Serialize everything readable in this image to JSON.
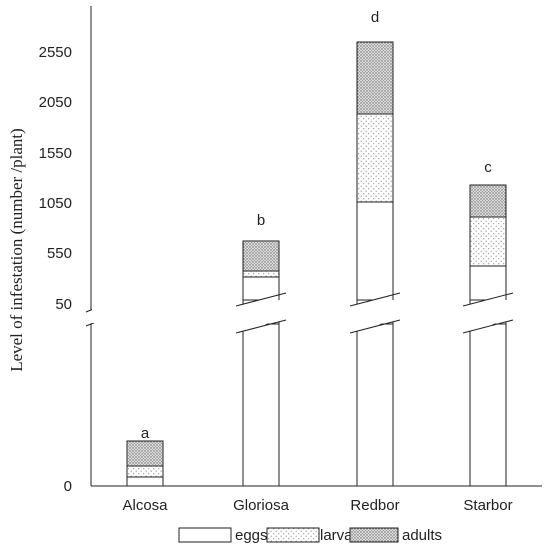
{
  "chart_data": {
    "type": "bar",
    "stacked": true,
    "broken_axis": true,
    "categories": [
      "Alcosa",
      "Gloriosa",
      "Redbor",
      "Starbor"
    ],
    "significance": [
      "a",
      "b",
      "d",
      "c"
    ],
    "ylabel": "Level of infestation (number /plant)",
    "yticks_upper": [
      "2550",
      "2050",
      "1550",
      "1050",
      "550",
      "50"
    ],
    "yticks_lower": [
      "0"
    ],
    "ylim_upper": [
      50,
      2800
    ],
    "series": [
      {
        "name": "eggs",
        "pattern": "none",
        "values": [
          5,
          350,
          1050,
          420
        ]
      },
      {
        "name": "larva",
        "pattern": "dots",
        "values": [
          10,
          60,
          870,
          480
        ]
      },
      {
        "name": "adults",
        "pattern": "dense",
        "values": [
          25,
          320,
          680,
          330
        ]
      }
    ],
    "legend": {
      "placement": "bottom",
      "entries": [
        "eggs",
        "larva",
        "adults"
      ]
    }
  }
}
